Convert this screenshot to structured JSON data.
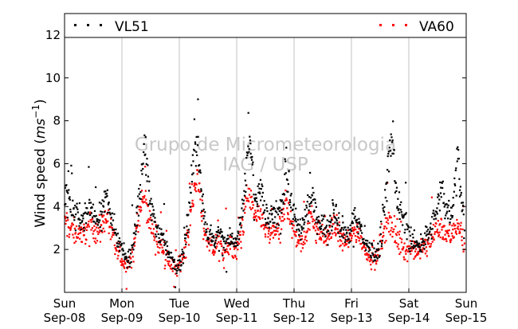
{
  "watermark": [
    "Grupo de Micrometeorologia",
    "IAG / USP"
  ],
  "colors": {
    "VL51": "#000000",
    "VA60": "#ff0000",
    "grid": "#c0c0c0",
    "watermark": "#c8c8c8"
  },
  "chart_data": {
    "type": "scatter",
    "title": "",
    "xlabel": "",
    "ylabel_text": "Wind speed (",
    "ylabel_math_base": "ms",
    "ylabel_math_exp": "−1",
    "ylabel_close": ")",
    "x_range": [
      "2013-09-08 00:00",
      "2013-09-15 00:00"
    ],
    "ylim": [
      0,
      13
    ],
    "y_ticks": [
      2,
      4,
      6,
      8,
      10,
      12
    ],
    "x_ticks": [
      {
        "day": "Sun",
        "date": "Sep-08"
      },
      {
        "day": "Mon",
        "date": "Sep-09"
      },
      {
        "day": "Tue",
        "date": "Sep-10"
      },
      {
        "day": "Wed",
        "date": "Sep-11"
      },
      {
        "day": "Thu",
        "date": "Sep-12"
      },
      {
        "day": "Fri",
        "date": "Sep-13"
      },
      {
        "day": "Sat",
        "date": "Sep-14"
      },
      {
        "day": "Sun",
        "date": "Sep-15"
      }
    ],
    "grid": "vertical-dotted",
    "legend_position": "top",
    "series": [
      {
        "name": "VL51",
        "color": "#000000",
        "marker": "square",
        "hourly_mean": [
          [
            4.6,
            4.3,
            4.0,
            3.8,
            3.6,
            3.7,
            3.6,
            3.4,
            3.5,
            3.8,
            4.0,
            3.8,
            3.6,
            3.4,
            3.6,
            3.9,
            4.2,
            4.5,
            4.0,
            3.5,
            3.0,
            2.6,
            2.3,
            2.1
          ],
          [
            1.8,
            1.6,
            1.5,
            1.7,
            2.2,
            2.9,
            3.8,
            4.8,
            6.0,
            6.8,
            5.6,
            4.5,
            3.8,
            3.4,
            3.0,
            2.8,
            2.7,
            2.4,
            2.0,
            1.8,
            1.6,
            1.4,
            1.2,
            1.3
          ],
          [
            1.6,
            2.0,
            2.6,
            3.4,
            4.5,
            5.6,
            6.6,
            7.0,
            6.0,
            4.6,
            3.5,
            2.9,
            2.6,
            2.5,
            2.4,
            2.6,
            2.8,
            2.6,
            2.4,
            2.3,
            2.4,
            2.6,
            2.4,
            2.2
          ],
          [
            2.5,
            3.2,
            4.0,
            5.0,
            6.5,
            6.8,
            5.8,
            4.6,
            4.5,
            4.8,
            4.6,
            4.0,
            3.6,
            3.4,
            3.5,
            3.5,
            3.6,
            3.8,
            4.1,
            4.6,
            5.8,
            5.2,
            4.4,
            3.8
          ],
          [
            3.4,
            3.0,
            2.8,
            3.0,
            3.4,
            3.8,
            4.3,
            4.5,
            4.0,
            3.5,
            3.4,
            3.2,
            3.1,
            3.0,
            3.2,
            3.5,
            4.0,
            3.8,
            3.3,
            3.0,
            2.9,
            2.8,
            2.7,
            2.9
          ],
          [
            3.3,
            3.5,
            3.3,
            3.1,
            2.8,
            2.5,
            2.2,
            2.0,
            1.9,
            1.8,
            1.8,
            2.1,
            2.8,
            3.8,
            5.0,
            6.2,
            7.2,
            6.2,
            5.0,
            4.2,
            3.7,
            3.5,
            3.3,
            3.0
          ],
          [
            2.6,
            2.4,
            2.3,
            2.2,
            2.2,
            2.4,
            2.5,
            2.6,
            2.8,
            3.0,
            3.4,
            3.8,
            4.2,
            4.6,
            4.4,
            4.0,
            3.8,
            3.6,
            4.2,
            5.2,
            6.6,
            5.0,
            3.8,
            3.0
          ]
        ]
      },
      {
        "name": "VA60",
        "color": "#ff0000",
        "marker": "square",
        "hourly_mean": [
          [
            3.3,
            3.1,
            3.0,
            2.9,
            2.8,
            2.8,
            2.8,
            2.7,
            2.8,
            3.0,
            3.2,
            3.1,
            3.0,
            2.8,
            2.9,
            3.1,
            3.4,
            3.6,
            3.2,
            2.8,
            2.4,
            2.0,
            1.8,
            1.6
          ],
          [
            1.4,
            1.3,
            1.3,
            1.5,
            1.9,
            2.5,
            3.1,
            3.8,
            4.2,
            4.3,
            3.9,
            3.4,
            3.0,
            2.7,
            2.4,
            2.2,
            2.1,
            1.9,
            1.6,
            1.4,
            1.3,
            1.2,
            1.1,
            1.2
          ],
          [
            1.4,
            1.7,
            2.1,
            2.8,
            3.6,
            4.3,
            4.9,
            5.2,
            4.8,
            3.8,
            2.9,
            2.4,
            2.2,
            2.1,
            2.0,
            2.2,
            2.4,
            2.2,
            2.0,
            1.9,
            2.0,
            2.2,
            2.0,
            1.9
          ],
          [
            2.1,
            2.6,
            3.2,
            3.9,
            4.6,
            4.5,
            4.0,
            3.5,
            3.4,
            3.6,
            3.5,
            3.1,
            2.8,
            2.7,
            2.8,
            2.8,
            2.9,
            3.0,
            3.3,
            3.6,
            4.3,
            3.9,
            3.4,
            3.0
          ],
          [
            2.7,
            2.4,
            2.3,
            2.4,
            2.7,
            3.0,
            3.3,
            3.5,
            3.2,
            2.9,
            2.8,
            2.7,
            2.6,
            2.5,
            2.7,
            2.9,
            3.2,
            3.1,
            2.8,
            2.5,
            2.4,
            2.4,
            2.3,
            2.5
          ],
          [
            2.8,
            2.9,
            2.8,
            2.6,
            2.4,
            2.1,
            1.9,
            1.7,
            1.6,
            1.6,
            1.6,
            1.8,
            2.3,
            2.8,
            3.2,
            3.4,
            3.3,
            2.9,
            2.6,
            2.4,
            2.2,
            2.1,
            2.0,
            1.9
          ],
          [
            2.1,
            2.0,
            1.9,
            1.9,
            1.9,
            2.0,
            2.1,
            2.2,
            2.3,
            2.5,
            2.7,
            2.9,
            3.0,
            3.1,
            3.0,
            2.8,
            2.7,
            2.6,
            2.8,
            3.1,
            3.3,
            2.8,
            2.4,
            2.1
          ]
        ]
      }
    ]
  }
}
